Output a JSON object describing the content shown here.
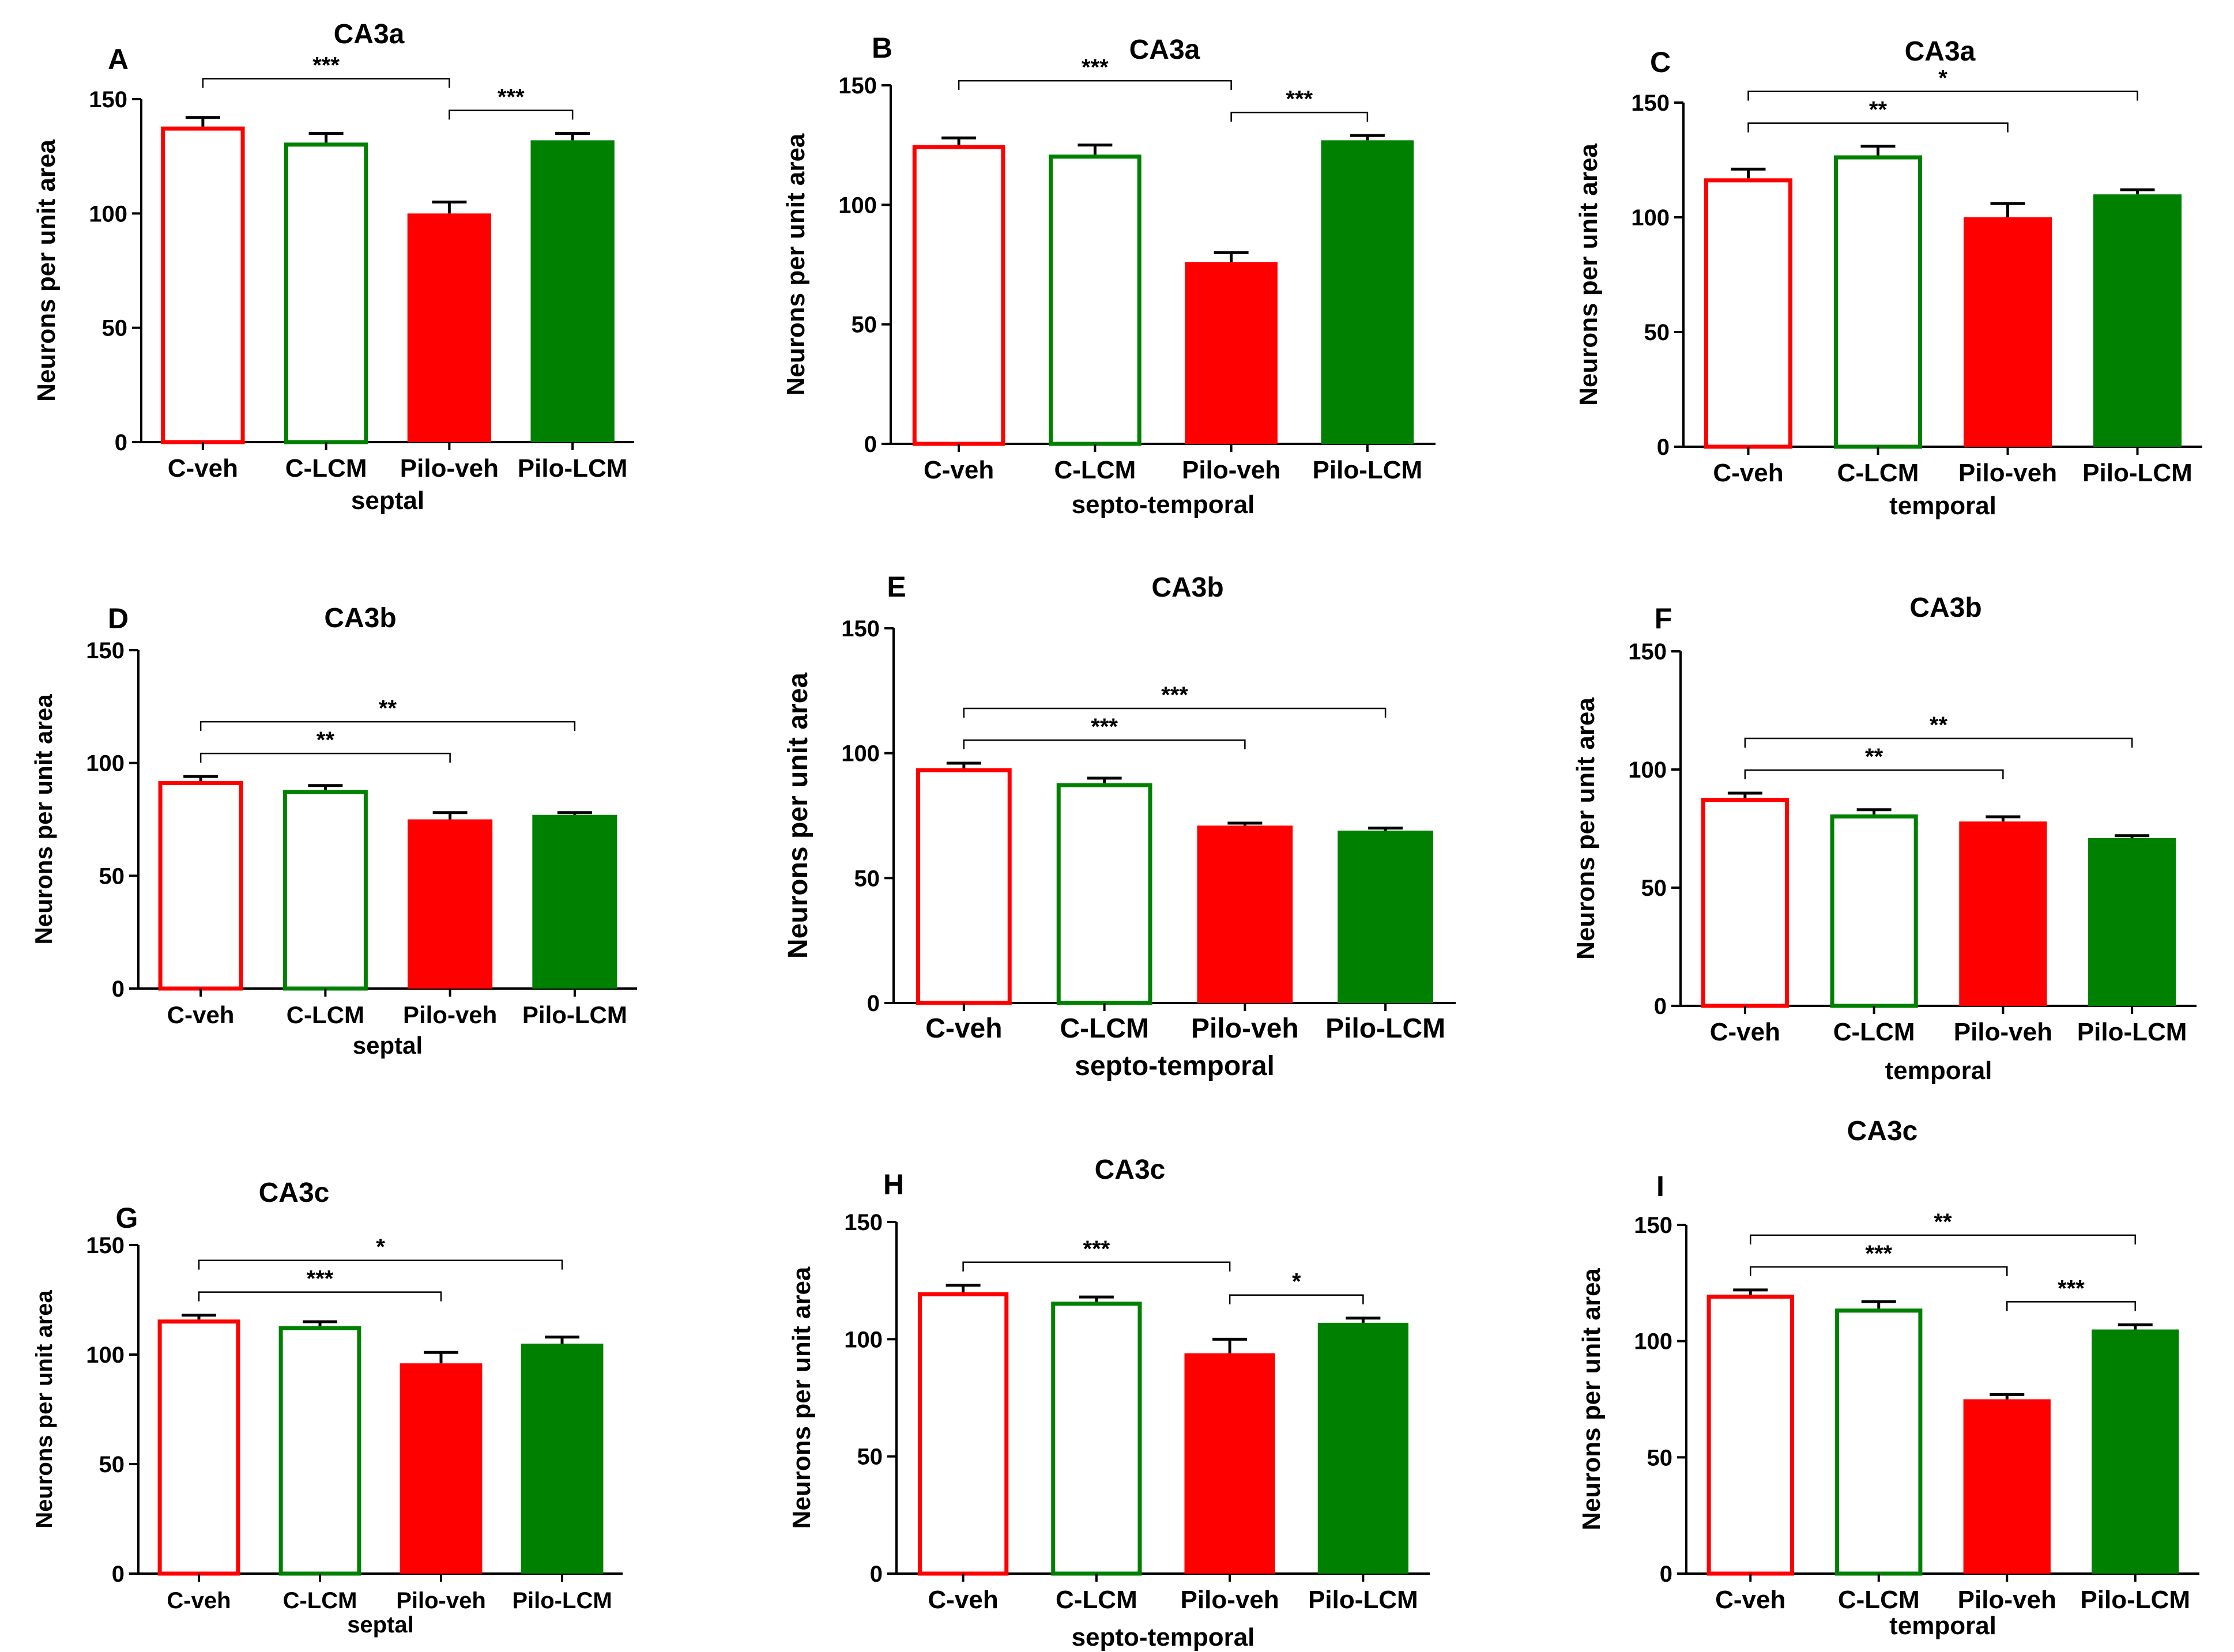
{
  "figure": {
    "y_axis_label": "Neurons per unit area",
    "categories": [
      "C-veh",
      "C-LCM",
      "Pilo-veh",
      "Pilo-LCM"
    ],
    "bar_colors": [
      "#ff0000",
      "#008000",
      "#ff0000",
      "#008000"
    ],
    "bar_filled": [
      false,
      false,
      true,
      true
    ]
  },
  "chart_data": [
    {
      "panel": "A",
      "type": "bar",
      "title": "CA3a",
      "xlabel": "septal",
      "ylabel": "Neurons per unit area",
      "categories": [
        "C-veh",
        "C-LCM",
        "Pilo-veh",
        "Pilo-LCM"
      ],
      "values": [
        138,
        131,
        100,
        132
      ],
      "errors": [
        4,
        4,
        5,
        3
      ],
      "ylim": [
        0,
        150
      ],
      "yticks": [
        0,
        50,
        100,
        150
      ],
      "significance": [
        {
          "from": 0,
          "to": 2,
          "label": "***"
        },
        {
          "from": 2,
          "to": 3,
          "label": "***"
        }
      ]
    },
    {
      "panel": "B",
      "type": "bar",
      "title": "CA3a",
      "xlabel": "septo-temporal",
      "ylabel": "Neurons per unit area",
      "categories": [
        "C-veh",
        "C-LCM",
        "Pilo-veh",
        "Pilo-LCM"
      ],
      "values": [
        125,
        121,
        76,
        127
      ],
      "errors": [
        3,
        4,
        4,
        2
      ],
      "ylim": [
        0,
        150
      ],
      "yticks": [
        0,
        50,
        100,
        150
      ],
      "significance": [
        {
          "from": 0,
          "to": 2,
          "label": "***"
        },
        {
          "from": 2,
          "to": 3,
          "label": "***"
        }
      ]
    },
    {
      "panel": "C",
      "type": "bar",
      "title": "CA3a",
      "xlabel": "temporal",
      "ylabel": "Neurons per unit area",
      "categories": [
        "C-veh",
        "C-LCM",
        "Pilo-veh",
        "Pilo-LCM"
      ],
      "values": [
        117,
        127,
        100,
        110
      ],
      "errors": [
        4,
        4,
        6,
        2
      ],
      "ylim": [
        0,
        150
      ],
      "yticks": [
        0,
        50,
        100,
        150
      ],
      "significance": [
        {
          "from": 0,
          "to": 2,
          "label": "**"
        },
        {
          "from": 0,
          "to": 3,
          "label": "*"
        }
      ]
    },
    {
      "panel": "D",
      "type": "bar",
      "title": "CA3b",
      "xlabel": "septal",
      "ylabel": "Neurons per unit area",
      "categories": [
        "C-veh",
        "C-LCM",
        "Pilo-veh",
        "Pilo-LCM"
      ],
      "values": [
        92,
        88,
        75,
        77
      ],
      "errors": [
        2,
        2,
        3,
        1
      ],
      "ylim": [
        0,
        150
      ],
      "yticks": [
        0,
        50,
        100,
        150
      ],
      "significance": [
        {
          "from": 0,
          "to": 2,
          "label": "**"
        },
        {
          "from": 0,
          "to": 3,
          "label": "**"
        }
      ]
    },
    {
      "panel": "E",
      "type": "bar",
      "title": "CA3b",
      "xlabel": "septo-temporal",
      "ylabel": "Neurons per unit area",
      "categories": [
        "C-veh",
        "C-LCM",
        "Pilo-veh",
        "Pilo-LCM"
      ],
      "values": [
        94,
        88,
        71,
        69
      ],
      "errors": [
        2,
        2,
        1,
        1
      ],
      "ylim": [
        0,
        150
      ],
      "yticks": [
        0,
        50,
        100,
        150
      ],
      "significance": [
        {
          "from": 0,
          "to": 2,
          "label": "***"
        },
        {
          "from": 0,
          "to": 3,
          "label": "***"
        }
      ]
    },
    {
      "panel": "F",
      "type": "bar",
      "title": "CA3b",
      "xlabel": "temporal",
      "ylabel": "Neurons per unit area",
      "categories": [
        "C-veh",
        "C-LCM",
        "Pilo-veh",
        "Pilo-LCM"
      ],
      "values": [
        88,
        81,
        78,
        71
      ],
      "errors": [
        2,
        2,
        2,
        1
      ],
      "ylim": [
        0,
        150
      ],
      "yticks": [
        0,
        50,
        100,
        150
      ],
      "significance": [
        {
          "from": 0,
          "to": 2,
          "label": "**"
        },
        {
          "from": 0,
          "to": 3,
          "label": "**"
        }
      ]
    },
    {
      "panel": "G",
      "type": "bar",
      "title": "CA3c",
      "xlabel": "septal",
      "ylabel": "Neurons per unit area",
      "categories": [
        "C-veh",
        "C-LCM",
        "Pilo-veh",
        "Pilo-LCM"
      ],
      "values": [
        116,
        113,
        96,
        105
      ],
      "errors": [
        2,
        2,
        5,
        3
      ],
      "ylim": [
        0,
        150
      ],
      "yticks": [
        0,
        50,
        100,
        150
      ],
      "significance": [
        {
          "from": 0,
          "to": 2,
          "label": "***"
        },
        {
          "from": 0,
          "to": 3,
          "label": "*"
        }
      ]
    },
    {
      "panel": "H",
      "type": "bar",
      "title": "CA3c",
      "xlabel": "septo-temporal",
      "ylabel": "Neurons per unit area",
      "categories": [
        "C-veh",
        "C-LCM",
        "Pilo-veh",
        "Pilo-LCM"
      ],
      "values": [
        120,
        116,
        94,
        107
      ],
      "errors": [
        3,
        2,
        6,
        2
      ],
      "ylim": [
        0,
        150
      ],
      "yticks": [
        0,
        50,
        100,
        150
      ],
      "significance": [
        {
          "from": 0,
          "to": 2,
          "label": "***"
        },
        {
          "from": 2,
          "to": 3,
          "label": "*"
        }
      ]
    },
    {
      "panel": "I",
      "type": "bar",
      "title": "CA3c",
      "xlabel": "temporal",
      "ylabel": "Neurons per unit area",
      "categories": [
        "C-veh",
        "C-LCM",
        "Pilo-veh",
        "Pilo-LCM"
      ],
      "values": [
        120,
        114,
        75,
        105
      ],
      "errors": [
        2,
        3,
        2,
        2
      ],
      "ylim": [
        0,
        150
      ],
      "yticks": [
        0,
        50,
        100,
        150
      ],
      "significance": [
        {
          "from": 0,
          "to": 2,
          "label": "***"
        },
        {
          "from": 0,
          "to": 3,
          "label": "**"
        },
        {
          "from": 2,
          "to": 3,
          "label": "***"
        }
      ]
    }
  ]
}
